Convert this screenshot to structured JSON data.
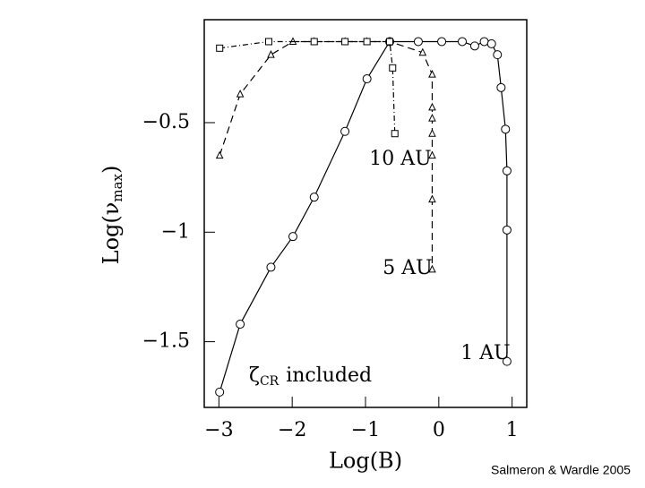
{
  "chart_data": {
    "type": "line",
    "xlabel": "Log(B)",
    "ylabel_parts": [
      "Log(ν",
      "max",
      ")"
    ],
    "annotation_parts": [
      "ζ",
      "CR",
      "included"
    ],
    "credit": "Salmeron & Wardle 2005",
    "xlim": [
      -3.2,
      1.2
    ],
    "ylim": [
      -1.8,
      -0.03
    ],
    "xticks": [
      {
        "value": -3,
        "label": "−3"
      },
      {
        "value": -2,
        "label": "−2"
      },
      {
        "value": -1,
        "label": "−1"
      },
      0,
      1
    ],
    "yticks": [
      {
        "value": -1.5,
        "label": "−1.5"
      },
      {
        "value": -1,
        "label": "−1"
      },
      {
        "value": -0.5,
        "label": "−0.5"
      }
    ],
    "series": [
      {
        "name": "1 AU",
        "marker": "circle",
        "dash": "none",
        "color": "#000000",
        "x": [
          -2.99,
          -2.71,
          -2.29,
          -1.99,
          -1.7,
          -1.28,
          -0.98,
          -0.67,
          -0.28,
          0.04,
          0.32,
          0.49,
          0.62,
          0.72,
          0.8,
          0.85,
          0.91,
          0.93,
          0.93,
          0.93
        ],
        "values": [
          -1.73,
          -1.42,
          -1.16,
          -1.02,
          -0.84,
          -0.54,
          -0.3,
          -0.13,
          -0.13,
          -0.13,
          -0.13,
          -0.15,
          -0.13,
          -0.14,
          -0.19,
          -0.34,
          -0.53,
          -0.72,
          -0.99,
          -1.59
        ]
      },
      {
        "name": "5 AU",
        "marker": "triangle",
        "dash": "8 5",
        "color": "#000000",
        "x": [
          -2.99,
          -2.71,
          -2.29,
          -1.99,
          -1.7,
          -1.28,
          -0.98,
          -0.67,
          -0.22,
          -0.09,
          -0.09,
          -0.09,
          -0.09,
          -0.09,
          -0.09,
          -0.09
        ],
        "values": [
          -0.65,
          -0.37,
          -0.19,
          -0.13,
          -0.13,
          -0.13,
          -0.13,
          -0.13,
          -0.18,
          -0.28,
          -0.43,
          -0.48,
          -0.55,
          -0.65,
          -0.85,
          -1.17
        ]
      },
      {
        "name": "10 AU",
        "marker": "square",
        "dash": "6 3 1 3",
        "color": "#000000",
        "x": [
          -2.99,
          -2.32,
          -1.7,
          -1.28,
          -0.98,
          -0.67,
          -0.63,
          -0.6
        ],
        "values": [
          -0.16,
          -0.13,
          -0.13,
          -0.13,
          -0.13,
          -0.13,
          -0.25,
          -0.55
        ]
      }
    ]
  }
}
